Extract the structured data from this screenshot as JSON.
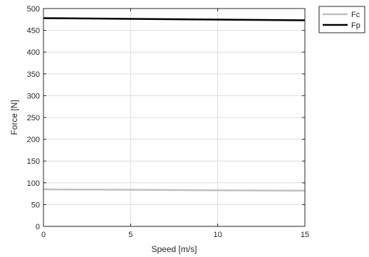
{
  "chart_data": {
    "type": "line",
    "xlabel": "Speed [m/s]",
    "ylabel": "Force [N]",
    "xlim": [
      0,
      15
    ],
    "ylim": [
      0,
      500
    ],
    "xticks": [
      0,
      5,
      10,
      15
    ],
    "yticks": [
      0,
      50,
      100,
      150,
      200,
      250,
      300,
      350,
      400,
      450,
      500
    ],
    "grid": true,
    "legend_position": "outside-top-right",
    "series": [
      {
        "name": "Fc",
        "color": "#c0c0c0",
        "x": [
          0,
          15
        ],
        "y": [
          85,
          82
        ]
      },
      {
        "name": "Fp",
        "color": "#000000",
        "x": [
          0,
          15
        ],
        "y": [
          478,
          473
        ]
      }
    ]
  }
}
